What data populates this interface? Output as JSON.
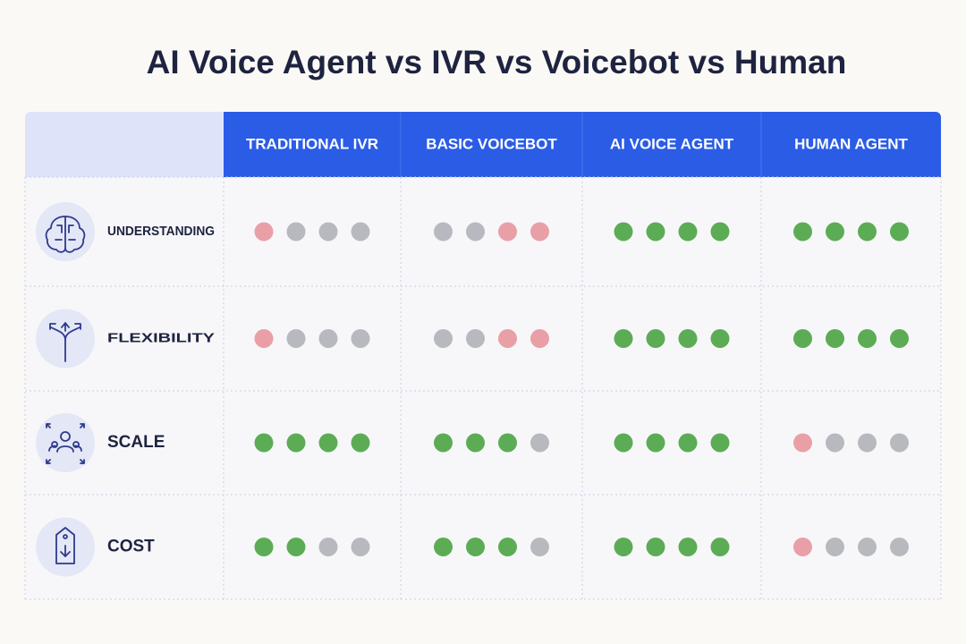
{
  "title": "AI Voice Agent vs IVR vs Voicebot vs Human",
  "table": {
    "columns": [
      "TRADITIONAL IVR",
      "BASIC VOICEBOT",
      "AI VOICE AGENT",
      "HUMAN AGENT"
    ],
    "rows": [
      {
        "label": "UNDERSTANDING",
        "cells": [
          [
            "#e8a0a6",
            "#b8b9bf",
            "#b8b9bf",
            "#b8b9bf"
          ],
          [
            "#b8b9bf",
            "#b8b9bf",
            "#e8a0a6",
            "#e8a0a6"
          ],
          [
            "#5cac55",
            "#5cac55",
            "#5cac55",
            "#5cac55"
          ],
          [
            "#5cac55",
            "#5cac55",
            "#5cac55",
            "#5cac55"
          ]
        ]
      },
      {
        "label": "FLEXIBILITY",
        "cells": [
          [
            "#e8a0a6",
            "#b8b9bf",
            "#b8b9bf",
            "#b8b9bf"
          ],
          [
            "#b8b9bf",
            "#b8b9bf",
            "#e8a0a6",
            "#e8a0a6"
          ],
          [
            "#5cac55",
            "#5cac55",
            "#5cac55",
            "#5cac55"
          ],
          [
            "#5cac55",
            "#5cac55",
            "#5cac55",
            "#5cac55"
          ]
        ]
      },
      {
        "label": "SCALE",
        "cells": [
          [
            "#5cac55",
            "#5cac55",
            "#5cac55",
            "#5cac55"
          ],
          [
            "#5cac55",
            "#5cac55",
            "#5cac55",
            "#b8b9bf"
          ],
          [
            "#5cac55",
            "#5cac55",
            "#5cac55",
            "#5cac55"
          ],
          [
            "#e8a0a6",
            "#b8b9bf",
            "#b8b9bf",
            "#b8b9bf"
          ]
        ]
      },
      {
        "label": "COST",
        "cells": [
          [
            "#5cac55",
            "#5cac55",
            "#b8b9bf",
            "#b8b9bf"
          ],
          [
            "#5cac55",
            "#5cac55",
            "#5cac55",
            "#b8b9bf"
          ],
          [
            "#5cac55",
            "#5cac55",
            "#5cac55",
            "#5cac55"
          ],
          [
            "#e8a0a6",
            "#b8b9bf",
            "#b8b9bf",
            "#b8b9bf"
          ]
        ]
      }
    ]
  }
}
